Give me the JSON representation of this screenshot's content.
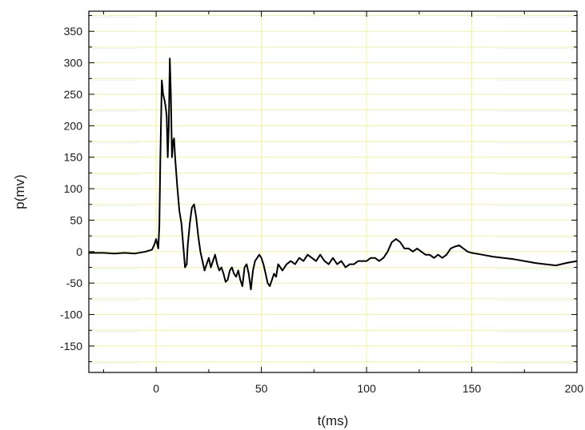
{
  "chart_data": {
    "type": "line",
    "xlabel": "t(ms)",
    "ylabel": "p(mv)",
    "xlim": [
      -32,
      200
    ],
    "ylim": [
      -192,
      382
    ],
    "x_ticks": [
      0,
      50,
      100,
      150,
      200
    ],
    "y_ticks": [
      -150,
      -100,
      -50,
      0,
      50,
      100,
      150,
      200,
      250,
      300,
      350
    ],
    "x_tick_labels": [
      "0",
      "50",
      "100",
      "150",
      "200"
    ],
    "y_tick_labels": [
      "-150",
      "-100",
      "-50",
      "0",
      "50",
      "100",
      "150",
      "200",
      "250",
      "300",
      "350"
    ],
    "grid": true,
    "grid_color": "#f2f2a0",
    "minor_grid_color": "#e2f3f3",
    "line_color": "#000000",
    "series": [
      {
        "x": [
          -32,
          -25,
          -20,
          -15,
          -10,
          -5,
          -2,
          -1,
          0,
          1,
          1.5,
          2,
          2.7,
          3.3,
          4,
          4.5,
          5,
          5.5,
          6,
          6.5,
          7,
          7.5,
          8,
          8.5,
          9,
          10,
          11,
          12,
          13,
          13.7,
          14.5,
          15,
          16,
          17,
          18,
          19,
          20,
          21,
          22,
          23,
          24,
          25,
          26,
          27,
          28,
          29,
          30,
          31,
          32,
          33,
          34,
          35,
          36,
          37,
          38,
          39,
          40,
          41,
          42,
          43,
          44,
          45,
          46,
          47,
          48,
          49,
          50,
          51,
          52,
          53,
          54,
          55,
          56,
          57,
          58,
          59,
          60,
          62,
          64,
          66,
          68,
          70,
          72,
          74,
          76,
          78,
          80,
          82,
          84,
          86,
          88,
          90,
          92,
          94,
          96,
          98,
          100,
          102,
          104,
          106,
          108,
          110,
          112,
          114,
          116,
          118,
          120,
          122,
          124,
          126,
          128,
          130,
          132,
          134,
          136,
          138,
          140,
          142,
          144,
          146,
          148,
          150,
          155,
          160,
          165,
          170,
          175,
          180,
          185,
          190,
          195,
          200
        ],
        "values": [
          -2,
          -2,
          -3,
          -2,
          -3,
          0,
          3,
          10,
          20,
          5,
          40,
          150,
          272,
          250,
          240,
          230,
          215,
          150,
          200,
          307,
          250,
          150,
          175,
          180,
          150,
          105,
          65,
          45,
          5,
          -25,
          -20,
          10,
          45,
          70,
          75,
          55,
          25,
          0,
          -15,
          -30,
          -20,
          -10,
          -25,
          -15,
          -5,
          -20,
          -30,
          -25,
          -35,
          -48,
          -45,
          -30,
          -25,
          -35,
          -40,
          -30,
          -45,
          -55,
          -25,
          -20,
          -35,
          -60,
          -30,
          -15,
          -10,
          -5,
          -10,
          -20,
          -35,
          -50,
          -55,
          -45,
          -35,
          -40,
          -20,
          -25,
          -30,
          -20,
          -15,
          -20,
          -10,
          -15,
          -5,
          -10,
          -15,
          -5,
          -15,
          -20,
          -10,
          -20,
          -15,
          -25,
          -20,
          -20,
          -15,
          -15,
          -15,
          -10,
          -10,
          -15,
          -10,
          0,
          15,
          20,
          15,
          5,
          5,
          0,
          5,
          0,
          -5,
          -5,
          -10,
          -5,
          -10,
          -5,
          5,
          8,
          10,
          5,
          0,
          -2,
          -5,
          -8,
          -10,
          -12,
          -15,
          -18,
          -20,
          -22,
          -18,
          -15
        ]
      }
    ]
  }
}
